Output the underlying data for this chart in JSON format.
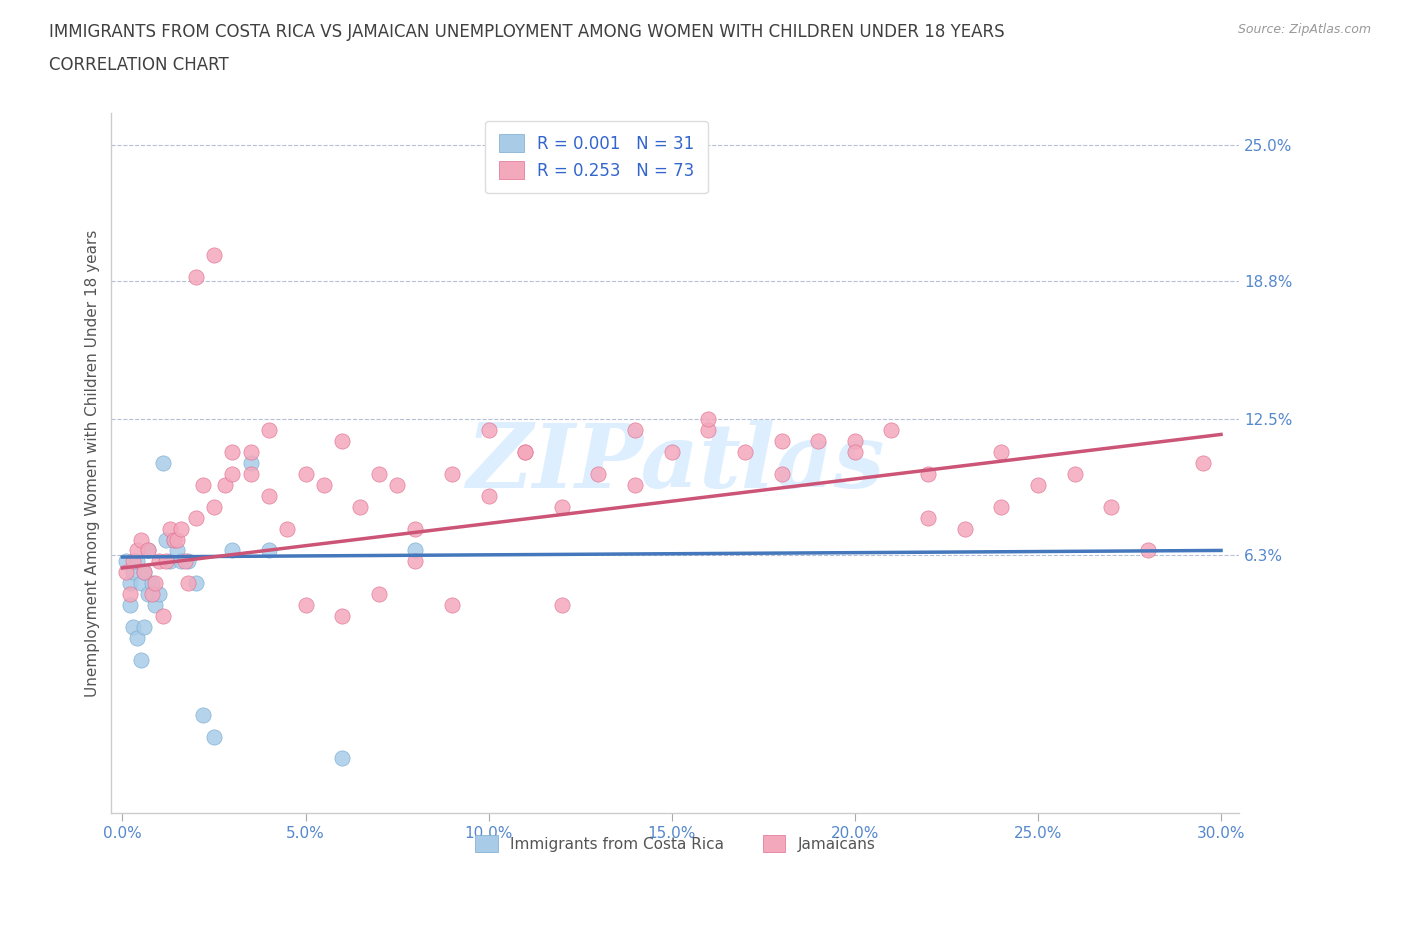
{
  "title_line1": "IMMIGRANTS FROM COSTA RICA VS JAMAICAN UNEMPLOYMENT AMONG WOMEN WITH CHILDREN UNDER 18 YEARS",
  "title_line2": "CORRELATION CHART",
  "source_text": "Source: ZipAtlas.com",
  "ylabel_label": "Unemployment Among Women with Children Under 18 years",
  "xlim": [
    -0.003,
    0.305
  ],
  "ylim": [
    -0.055,
    0.265
  ],
  "ytick_positions": [
    0.063,
    0.125,
    0.188,
    0.25
  ],
  "ytick_labels": [
    "6.3%",
    "12.5%",
    "18.8%",
    "25.0%"
  ],
  "xtick_positions": [
    0.0,
    0.05,
    0.1,
    0.15,
    0.2,
    0.25,
    0.3
  ],
  "xtick_labels": [
    "0.0%",
    "5.0%",
    "10.0%",
    "15.0%",
    "20.0%",
    "25.0%",
    "30.0%"
  ],
  "grid_color": "#b0b8d0",
  "watermark_text": "ZIPatlas",
  "series": [
    {
      "name": "Immigrants from Costa Rica",
      "R": "0.001",
      "N": "31",
      "marker_color": "#a8cce8",
      "marker_edge": "#7aaad0",
      "line_color": "#4477bb",
      "line_style": "-",
      "x": [
        0.001,
        0.002,
        0.002,
        0.003,
        0.003,
        0.004,
        0.004,
        0.005,
        0.005,
        0.006,
        0.006,
        0.007,
        0.007,
        0.008,
        0.009,
        0.01,
        0.011,
        0.012,
        0.013,
        0.014,
        0.015,
        0.016,
        0.018,
        0.02,
        0.022,
        0.025,
        0.03,
        0.035,
        0.04,
        0.06,
        0.08
      ],
      "y": [
        0.06,
        0.05,
        0.04,
        0.055,
        0.03,
        0.06,
        0.025,
        0.05,
        0.015,
        0.055,
        0.03,
        0.065,
        0.045,
        0.05,
        0.04,
        0.045,
        0.105,
        0.07,
        0.06,
        0.07,
        0.065,
        0.06,
        0.06,
        0.05,
        -0.01,
        -0.02,
        0.065,
        0.105,
        0.065,
        -0.03,
        0.065
      ],
      "trend_x": [
        0.0,
        0.3
      ],
      "trend_y": [
        0.062,
        0.065
      ]
    },
    {
      "name": "Jamaicans",
      "R": "0.253",
      "N": "73",
      "marker_color": "#f4a8bc",
      "marker_edge": "#e07090",
      "line_color": "#cc5577",
      "line_style": "-",
      "x": [
        0.001,
        0.002,
        0.003,
        0.004,
        0.005,
        0.006,
        0.007,
        0.008,
        0.009,
        0.01,
        0.011,
        0.012,
        0.013,
        0.014,
        0.015,
        0.016,
        0.017,
        0.018,
        0.02,
        0.022,
        0.025,
        0.028,
        0.03,
        0.035,
        0.04,
        0.045,
        0.05,
        0.055,
        0.06,
        0.065,
        0.07,
        0.075,
        0.08,
        0.09,
        0.1,
        0.11,
        0.12,
        0.13,
        0.14,
        0.15,
        0.16,
        0.17,
        0.18,
        0.19,
        0.2,
        0.21,
        0.22,
        0.23,
        0.24,
        0.25,
        0.02,
        0.025,
        0.03,
        0.035,
        0.04,
        0.05,
        0.06,
        0.07,
        0.08,
        0.09,
        0.1,
        0.11,
        0.12,
        0.14,
        0.16,
        0.18,
        0.2,
        0.22,
        0.24,
        0.26,
        0.27,
        0.28,
        0.295
      ],
      "y": [
        0.055,
        0.045,
        0.06,
        0.065,
        0.07,
        0.055,
        0.065,
        0.045,
        0.05,
        0.06,
        0.035,
        0.06,
        0.075,
        0.07,
        0.07,
        0.075,
        0.06,
        0.05,
        0.08,
        0.095,
        0.085,
        0.095,
        0.11,
        0.1,
        0.12,
        0.075,
        0.1,
        0.095,
        0.115,
        0.085,
        0.1,
        0.095,
        0.075,
        0.1,
        0.09,
        0.11,
        0.085,
        0.1,
        0.095,
        0.11,
        0.12,
        0.11,
        0.1,
        0.115,
        0.115,
        0.12,
        0.1,
        0.075,
        0.085,
        0.095,
        0.19,
        0.2,
        0.1,
        0.11,
        0.09,
        0.04,
        0.035,
        0.045,
        0.06,
        0.04,
        0.12,
        0.11,
        0.04,
        0.12,
        0.125,
        0.115,
        0.11,
        0.08,
        0.11,
        0.1,
        0.085,
        0.065,
        0.105
      ],
      "trend_x": [
        0.0,
        0.3
      ],
      "trend_y": [
        0.057,
        0.118
      ]
    }
  ],
  "legend_R_color": "#3366cc",
  "title_color": "#404040",
  "axis_label_color": "#555555",
  "tick_label_color": "#5588cc",
  "watermark_color": "#ddeeff",
  "background_color": "#ffffff"
}
